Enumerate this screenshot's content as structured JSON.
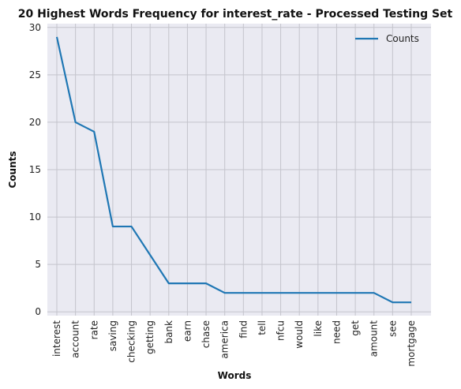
{
  "chart_data": {
    "type": "line",
    "title": "20 Highest Words Frequency for interest_rate - Processed Testing Set",
    "xlabel": "Words",
    "ylabel": "Counts",
    "categories": [
      "interest",
      "account",
      "rate",
      "saving",
      "checking",
      "getting",
      "bank",
      "earn",
      "chase",
      "america",
      "find",
      "tell",
      "nfcu",
      "would",
      "like",
      "need",
      "get",
      "amount",
      "see",
      "mortgage"
    ],
    "series": [
      {
        "name": "Counts",
        "values": [
          29,
          20,
          19,
          9,
          9,
          6,
          3,
          3,
          3,
          2,
          2,
          2,
          2,
          2,
          2,
          2,
          2,
          2,
          1,
          1
        ]
      }
    ],
    "ylim": [
      -0.4,
      30.4
    ],
    "yticks": [
      0,
      5,
      10,
      15,
      20,
      25,
      30
    ],
    "grid": true,
    "legend_position": "top-right",
    "colors": {
      "line": "#1f77b4",
      "plot_background": "#eaeaf2",
      "grid": "#c4c4cc"
    }
  }
}
